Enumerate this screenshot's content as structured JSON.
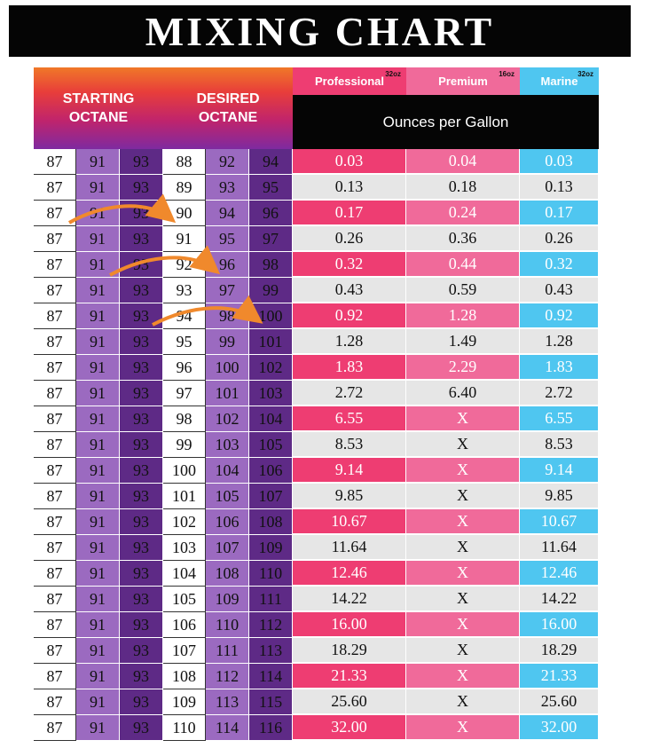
{
  "title": "MIXING CHART",
  "headers": {
    "starting": [
      "STARTING",
      "OCTANE"
    ],
    "desired": [
      "DESIRED",
      "OCTANE"
    ],
    "ounces_per_gallon": "Ounces per Gallon",
    "products": [
      {
        "name": "Professional",
        "size": "32oz",
        "color": "#ee3d72"
      },
      {
        "name": "Premium",
        "size": "16oz",
        "color": "#f06a9a"
      },
      {
        "name": "Marine",
        "size": "32oz",
        "color": "#4fc6f0"
      }
    ]
  },
  "colors": {
    "accent_red": "#ee3d72",
    "accent_pink": "#f06a9a",
    "accent_blue": "#4fc6f0",
    "gray": "#e6e6e6",
    "arrow": "#f0892c"
  },
  "rows": [
    {
      "start": [
        "87",
        "91",
        "93"
      ],
      "desired": [
        "88",
        "92",
        "94"
      ],
      "values": [
        "0.03",
        "0.04",
        "0.03"
      ]
    },
    {
      "start": [
        "87",
        "91",
        "93"
      ],
      "desired": [
        "89",
        "93",
        "95"
      ],
      "values": [
        "0.13",
        "0.18",
        "0.13"
      ]
    },
    {
      "start": [
        "87",
        "91",
        "93"
      ],
      "desired": [
        "90",
        "94",
        "96"
      ],
      "values": [
        "0.17",
        "0.24",
        "0.17"
      ]
    },
    {
      "start": [
        "87",
        "91",
        "93"
      ],
      "desired": [
        "91",
        "95",
        "97"
      ],
      "values": [
        "0.26",
        "0.36",
        "0.26"
      ]
    },
    {
      "start": [
        "87",
        "91",
        "93"
      ],
      "desired": [
        "92",
        "96",
        "98"
      ],
      "values": [
        "0.32",
        "0.44",
        "0.32"
      ]
    },
    {
      "start": [
        "87",
        "91",
        "93"
      ],
      "desired": [
        "93",
        "97",
        "99"
      ],
      "values": [
        "0.43",
        "0.59",
        "0.43"
      ]
    },
    {
      "start": [
        "87",
        "91",
        "93"
      ],
      "desired": [
        "94",
        "98",
        "100"
      ],
      "values": [
        "0.92",
        "1.28",
        "0.92"
      ]
    },
    {
      "start": [
        "87",
        "91",
        "93"
      ],
      "desired": [
        "95",
        "99",
        "101"
      ],
      "values": [
        "1.28",
        "1.49",
        "1.28"
      ]
    },
    {
      "start": [
        "87",
        "91",
        "93"
      ],
      "desired": [
        "96",
        "100",
        "102"
      ],
      "values": [
        "1.83",
        "2.29",
        "1.83"
      ]
    },
    {
      "start": [
        "87",
        "91",
        "93"
      ],
      "desired": [
        "97",
        "101",
        "103"
      ],
      "values": [
        "2.72",
        "6.40",
        "2.72"
      ]
    },
    {
      "start": [
        "87",
        "91",
        "93"
      ],
      "desired": [
        "98",
        "102",
        "104"
      ],
      "values": [
        "6.55",
        "X",
        "6.55"
      ]
    },
    {
      "start": [
        "87",
        "91",
        "93"
      ],
      "desired": [
        "99",
        "103",
        "105"
      ],
      "values": [
        "8.53",
        "X",
        "8.53"
      ]
    },
    {
      "start": [
        "87",
        "91",
        "93"
      ],
      "desired": [
        "100",
        "104",
        "106"
      ],
      "values": [
        "9.14",
        "X",
        "9.14"
      ]
    },
    {
      "start": [
        "87",
        "91",
        "93"
      ],
      "desired": [
        "101",
        "105",
        "107"
      ],
      "values": [
        "9.85",
        "X",
        "9.85"
      ]
    },
    {
      "start": [
        "87",
        "91",
        "93"
      ],
      "desired": [
        "102",
        "106",
        "108"
      ],
      "values": [
        "10.67",
        "X",
        "10.67"
      ]
    },
    {
      "start": [
        "87",
        "91",
        "93"
      ],
      "desired": [
        "103",
        "107",
        "109"
      ],
      "values": [
        "11.64",
        "X",
        "11.64"
      ]
    },
    {
      "start": [
        "87",
        "91",
        "93"
      ],
      "desired": [
        "104",
        "108",
        "110"
      ],
      "values": [
        "12.46",
        "X",
        "12.46"
      ]
    },
    {
      "start": [
        "87",
        "91",
        "93"
      ],
      "desired": [
        "105",
        "109",
        "111"
      ],
      "values": [
        "14.22",
        "X",
        "14.22"
      ]
    },
    {
      "start": [
        "87",
        "91",
        "93"
      ],
      "desired": [
        "106",
        "110",
        "112"
      ],
      "values": [
        "16.00",
        "X",
        "16.00"
      ]
    },
    {
      "start": [
        "87",
        "91",
        "93"
      ],
      "desired": [
        "107",
        "111",
        "113"
      ],
      "values": [
        "18.29",
        "X",
        "18.29"
      ]
    },
    {
      "start": [
        "87",
        "91",
        "93"
      ],
      "desired": [
        "108",
        "112",
        "114"
      ],
      "values": [
        "21.33",
        "X",
        "21.33"
      ]
    },
    {
      "start": [
        "87",
        "91",
        "93"
      ],
      "desired": [
        "109",
        "113",
        "115"
      ],
      "values": [
        "25.60",
        "X",
        "25.60"
      ]
    },
    {
      "start": [
        "87",
        "91",
        "93"
      ],
      "desired": [
        "110",
        "114",
        "116"
      ],
      "values": [
        "32.00",
        "X",
        "32.00"
      ]
    }
  ]
}
